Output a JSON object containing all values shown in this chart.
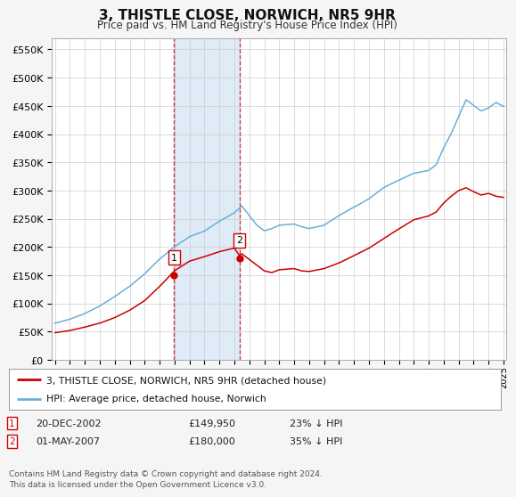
{
  "title": "3, THISTLE CLOSE, NORWICH, NR5 9HR",
  "subtitle": "Price paid vs. HM Land Registry's House Price Index (HPI)",
  "ylabel_ticks": [
    "£0",
    "£50K",
    "£100K",
    "£150K",
    "£200K",
    "£250K",
    "£300K",
    "£350K",
    "£400K",
    "£450K",
    "£500K",
    "£550K"
  ],
  "ytick_values": [
    0,
    50000,
    100000,
    150000,
    200000,
    250000,
    300000,
    350000,
    400000,
    450000,
    500000,
    550000
  ],
  "ylim": [
    0,
    570000
  ],
  "xmin_year": 1995,
  "xmax_year": 2025,
  "xtick_years": [
    1995,
    1996,
    1997,
    1998,
    1999,
    2000,
    2001,
    2002,
    2003,
    2004,
    2005,
    2006,
    2007,
    2008,
    2009,
    2010,
    2011,
    2012,
    2013,
    2014,
    2015,
    2016,
    2017,
    2018,
    2019,
    2020,
    2021,
    2022,
    2023,
    2024,
    2025
  ],
  "hpi_color": "#6baed6",
  "price_color": "#cc0000",
  "sale1_year": 2002.97,
  "sale1_price": 149950,
  "sale1_label": "1",
  "sale2_year": 2007.33,
  "sale2_price": 180000,
  "sale2_label": "2",
  "vline_color": "#cc0000",
  "shade_color": "#c6dbef",
  "legend_label_price": "3, THISTLE CLOSE, NORWICH, NR5 9HR (detached house)",
  "legend_label_hpi": "HPI: Average price, detached house, Norwich",
  "annotation1_date": "20-DEC-2002",
  "annotation1_price": "£149,950",
  "annotation1_pct": "23% ↓ HPI",
  "annotation2_date": "01-MAY-2007",
  "annotation2_price": "£180,000",
  "annotation2_pct": "35% ↓ HPI",
  "footnote": "Contains HM Land Registry data © Crown copyright and database right 2024.\nThis data is licensed under the Open Government Licence v3.0.",
  "background_color": "#f5f5f5",
  "plot_bg_color": "#ffffff"
}
